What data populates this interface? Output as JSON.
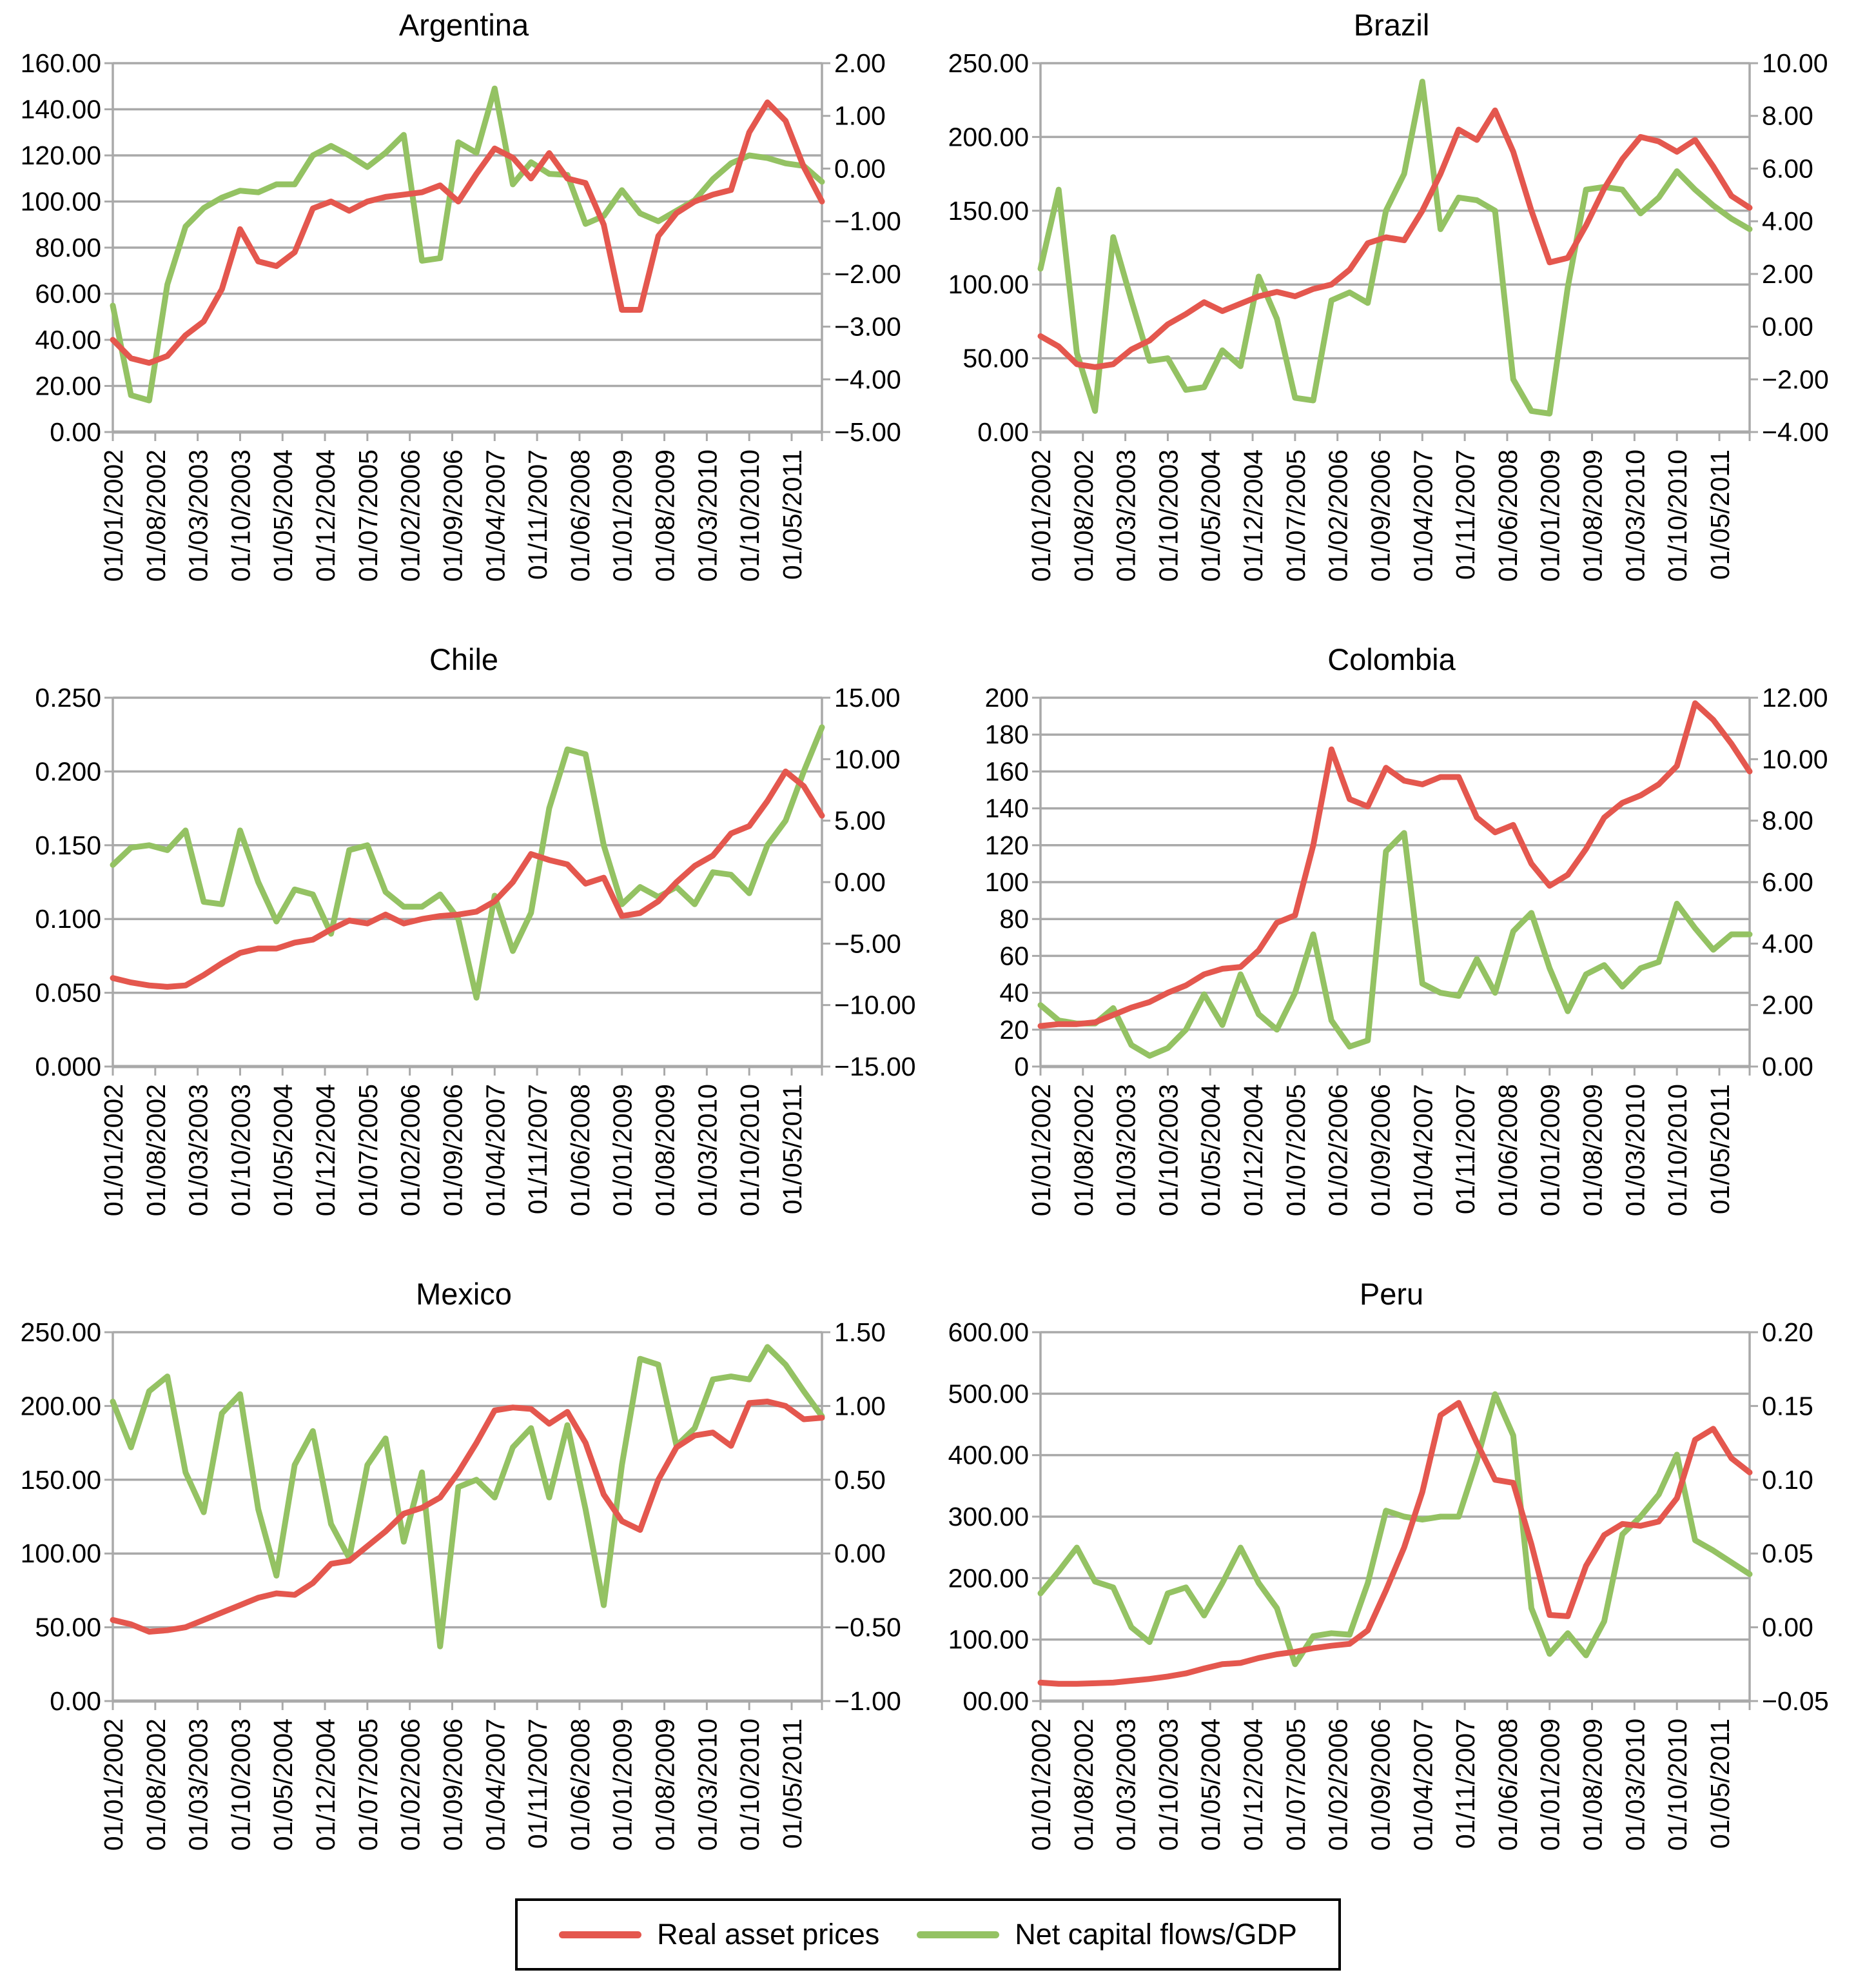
{
  "page": {
    "background": "#ffffff"
  },
  "colors": {
    "real_asset_prices": "#e4574e",
    "net_capital_flows": "#94c263",
    "grid": "#a9a9a9"
  },
  "legend": {
    "items": [
      {
        "label": "Real asset prices",
        "color": "#e4574e"
      },
      {
        "label": "Net capital flows/GDP",
        "color": "#94c263"
      }
    ]
  },
  "x_axis": {
    "labels": [
      "01/01/2002",
      "01/08/2002",
      "01/03/2003",
      "01/10/2003",
      "01/05/2004",
      "01/12/2004",
      "01/07/2005",
      "01/02/2006",
      "01/09/2006",
      "01/04/2007",
      "01/11/2007",
      "01/06/2008",
      "01/01/2009",
      "01/08/2009",
      "01/03/2010",
      "01/10/2010",
      "01/05/2011"
    ],
    "label_months": [
      0,
      7,
      14,
      21,
      28,
      35,
      42,
      49,
      56,
      63,
      70,
      77,
      84,
      91,
      98,
      105,
      112
    ],
    "total_months": 117
  },
  "chart_data": [
    {
      "type": "line",
      "title": "Argentina",
      "left_axis": {
        "ticks": [
          "160.00",
          "140.00",
          "120.00",
          "100.00",
          "80.00",
          "60.00",
          "40.00",
          "20.00",
          "0.00"
        ],
        "min": 0,
        "max": 160
      },
      "right_axis": {
        "ticks": [
          "2.00",
          "1.00",
          "0.00",
          "−1.00",
          "−2.00",
          "−3.00",
          "−4.00",
          "−5.00"
        ],
        "min": -5,
        "max": 2
      },
      "series": [
        {
          "name": "Real asset prices",
          "axis": "left",
          "color": "#e4574e",
          "values": [
            40,
            32,
            30,
            33,
            42,
            48,
            62,
            88,
            74,
            72,
            78,
            97,
            100,
            96,
            100,
            102,
            103,
            104,
            107,
            100,
            112,
            123,
            119,
            110,
            121,
            110,
            108,
            90,
            53,
            53,
            85,
            95,
            100,
            103,
            105,
            130,
            143,
            135,
            115,
            100
          ]
        },
        {
          "name": "Net capital flows/GDP",
          "axis": "right",
          "color": "#94c263",
          "values": [
            -2.6,
            -4.3,
            -4.4,
            -2.2,
            -1.1,
            -0.75,
            -0.55,
            -0.42,
            -0.45,
            -0.3,
            -0.3,
            0.25,
            0.43,
            0.25,
            0.03,
            0.3,
            0.64,
            -1.75,
            -1.7,
            0.5,
            0.3,
            1.52,
            -0.3,
            0.12,
            -0.1,
            -0.12,
            -1.05,
            -0.9,
            -0.41,
            -0.85,
            -1.0,
            -0.8,
            -0.6,
            -0.2,
            0.1,
            0.25,
            0.2,
            0.1,
            0.05,
            -0.25
          ]
        }
      ]
    },
    {
      "type": "line",
      "title": "Brazil",
      "left_axis": {
        "ticks": [
          "250.00",
          "200.00",
          "150.00",
          "100.00",
          "50.00",
          "0.00"
        ],
        "min": 0,
        "max": 250
      },
      "right_axis": {
        "ticks": [
          "10.00",
          "8.00",
          "6.00",
          "4.00",
          "2.00",
          "0.00",
          "−2.00",
          "−4.00"
        ],
        "min": -4,
        "max": 10
      },
      "series": [
        {
          "name": "Real asset prices",
          "axis": "left",
          "color": "#e4574e",
          "values": [
            65,
            58,
            46,
            44,
            46,
            56,
            62,
            73,
            80,
            88,
            82,
            87,
            92,
            95,
            92,
            97,
            100,
            110,
            128,
            132,
            130,
            150,
            175,
            205,
            198,
            218,
            190,
            150,
            115,
            118,
            140,
            165,
            185,
            200,
            197,
            190,
            198,
            180,
            160,
            152
          ]
        },
        {
          "name": "Net capital flows/GDP",
          "axis": "right",
          "color": "#94c263",
          "values": [
            2.2,
            5.2,
            -1.0,
            -3.2,
            3.4,
            1.0,
            -1.3,
            -1.2,
            -2.4,
            -2.3,
            -0.9,
            -1.5,
            1.9,
            0.3,
            -2.7,
            -2.8,
            1.0,
            1.3,
            0.9,
            4.4,
            5.8,
            9.3,
            3.7,
            4.9,
            4.8,
            4.4,
            -2.0,
            -3.2,
            -3.3,
            1.5,
            5.2,
            5.3,
            5.2,
            4.3,
            4.9,
            5.9,
            5.2,
            4.6,
            4.1,
            3.7
          ]
        }
      ]
    },
    {
      "type": "line",
      "title": "Chile",
      "left_axis": {
        "ticks": [
          "0.250",
          "0.200",
          "0.150",
          "0.100",
          "0.050",
          "0.000"
        ],
        "min": 0,
        "max": 0.25
      },
      "right_axis": {
        "ticks": [
          "15.00",
          "10.00",
          "5.00",
          "0.00",
          "−5.00",
          "−10.00",
          "−15.00"
        ],
        "min": -15,
        "max": 15
      },
      "series": [
        {
          "name": "Real asset prices",
          "axis": "left",
          "color": "#e4574e",
          "values": [
            0.06,
            0.057,
            0.055,
            0.054,
            0.055,
            0.062,
            0.07,
            0.077,
            0.08,
            0.08,
            0.084,
            0.086,
            0.093,
            0.099,
            0.097,
            0.103,
            0.097,
            0.1,
            0.102,
            0.103,
            0.105,
            0.112,
            0.125,
            0.144,
            0.14,
            0.137,
            0.124,
            0.128,
            0.102,
            0.104,
            0.112,
            0.125,
            0.136,
            0.143,
            0.158,
            0.163,
            0.18,
            0.2,
            0.19,
            0.17
          ]
        },
        {
          "name": "Net capital flows/GDP",
          "axis": "right",
          "color": "#94c263",
          "values": [
            1.4,
            2.8,
            3.0,
            2.6,
            4.2,
            -1.6,
            -1.8,
            4.2,
            0.0,
            -3.2,
            -0.6,
            -1.0,
            -4.2,
            2.6,
            3.0,
            -0.8,
            -2.0,
            -2.0,
            -1.0,
            -3.0,
            -9.4,
            -1.1,
            -5.6,
            -2.5,
            6.0,
            10.8,
            10.4,
            3.0,
            -1.8,
            -0.4,
            -1.2,
            -0.4,
            -1.8,
            0.8,
            0.6,
            -0.9,
            3.0,
            5.0,
            9.0,
            12.6
          ]
        }
      ]
    },
    {
      "type": "line",
      "title": "Colombia",
      "left_axis": {
        "ticks": [
          "200",
          "180",
          "160",
          "140",
          "120",
          "100",
          "80",
          "60",
          "40",
          "20",
          "0"
        ],
        "min": 0,
        "max": 200
      },
      "right_axis": {
        "ticks": [
          "12.00",
          "10.00",
          "8.00",
          "6.00",
          "4.00",
          "2.00",
          "0.00"
        ],
        "min": 0,
        "max": 12
      },
      "series": [
        {
          "name": "Real asset prices",
          "axis": "left",
          "color": "#e4574e",
          "values": [
            22,
            23,
            23,
            24,
            28,
            32,
            35,
            40,
            44,
            50,
            53,
            54,
            63,
            78,
            82,
            120,
            172,
            145,
            141,
            162,
            155,
            153,
            157,
            157,
            135,
            127,
            131,
            110,
            98,
            104,
            118,
            135,
            143,
            147,
            153,
            163,
            197,
            188,
            175,
            160
          ]
        },
        {
          "name": "Net capital flows/GDP",
          "axis": "right",
          "color": "#94c263",
          "values": [
            2.0,
            1.5,
            1.4,
            1.4,
            1.9,
            0.7,
            0.35,
            0.6,
            1.2,
            2.35,
            1.35,
            3.0,
            1.7,
            1.2,
            2.4,
            4.3,
            1.5,
            0.65,
            0.85,
            7.0,
            7.6,
            2.7,
            2.4,
            2.3,
            3.5,
            2.4,
            4.4,
            5.0,
            3.2,
            1.8,
            3.0,
            3.3,
            2.6,
            3.2,
            3.4,
            5.3,
            4.5,
            3.8,
            4.3,
            4.3
          ]
        }
      ]
    },
    {
      "type": "line",
      "title": "Mexico",
      "left_axis": {
        "ticks": [
          "250.00",
          "200.00",
          "150.00",
          "100.00",
          "50.00",
          "0.00"
        ],
        "min": 0,
        "max": 250
      },
      "right_axis": {
        "ticks": [
          "1.50",
          "1.00",
          "0.50",
          "0.00",
          "−0.50",
          "−1.00"
        ],
        "min": -1,
        "max": 1.5
      },
      "series": [
        {
          "name": "Real asset prices",
          "axis": "left",
          "color": "#e4574e",
          "values": [
            55,
            52,
            47,
            48,
            50,
            55,
            60,
            65,
            70,
            73,
            72,
            80,
            93,
            95,
            105,
            115,
            127,
            131,
            138,
            155,
            175,
            197,
            199,
            198,
            188,
            196,
            175,
            140,
            122,
            116,
            150,
            172,
            180,
            182,
            173,
            202,
            203,
            200,
            191,
            192
          ]
        },
        {
          "name": "Net capital flows/GDP",
          "axis": "right",
          "color": "#94c263",
          "values": [
            1.03,
            0.72,
            1.1,
            1.2,
            0.55,
            0.28,
            0.95,
            1.08,
            0.3,
            -0.15,
            0.6,
            0.83,
            0.2,
            -0.03,
            0.6,
            0.78,
            0.08,
            0.55,
            -0.63,
            0.45,
            0.5,
            0.38,
            0.72,
            0.85,
            0.38,
            0.87,
            0.3,
            -0.35,
            0.6,
            1.32,
            1.28,
            0.73,
            0.85,
            1.18,
            1.2,
            1.18,
            1.4,
            1.28,
            1.1,
            0.93
          ]
        }
      ]
    },
    {
      "type": "line",
      "title": "Peru",
      "left_axis": {
        "ticks": [
          "600.00",
          "500.00",
          "400.00",
          "300.00",
          "200.00",
          "100.00",
          "00.00"
        ],
        "min": 0,
        "max": 600
      },
      "right_axis": {
        "ticks": [
          "0.20",
          "0.15",
          "0.10",
          "0.05",
          "0.00",
          "−0.05"
        ],
        "min": -0.05,
        "max": 0.2
      },
      "series": [
        {
          "name": "Real asset prices",
          "axis": "left",
          "color": "#e4574e",
          "values": [
            30,
            28,
            28,
            29,
            30,
            33,
            36,
            40,
            45,
            53,
            60,
            62,
            70,
            76,
            80,
            86,
            90,
            93,
            115,
            180,
            250,
            340,
            465,
            485,
            420,
            360,
            355,
            255,
            140,
            138,
            220,
            270,
            288,
            285,
            292,
            330,
            425,
            443,
            395,
            372
          ]
        },
        {
          "name": "Net capital flows/GDP",
          "axis": "right",
          "color": "#94c263",
          "values": [
            0.023,
            0.038,
            0.054,
            0.031,
            0.027,
            0.0,
            -0.01,
            0.023,
            0.027,
            0.008,
            0.03,
            0.054,
            0.03,
            0.013,
            -0.025,
            -0.006,
            -0.004,
            -0.005,
            0.03,
            0.079,
            0.075,
            0.073,
            0.075,
            0.075,
            0.113,
            0.158,
            0.13,
            0.013,
            -0.018,
            -0.004,
            -0.019,
            0.004,
            0.063,
            0.075,
            0.09,
            0.117,
            0.059,
            0.052,
            0.044,
            0.036
          ]
        }
      ]
    }
  ]
}
